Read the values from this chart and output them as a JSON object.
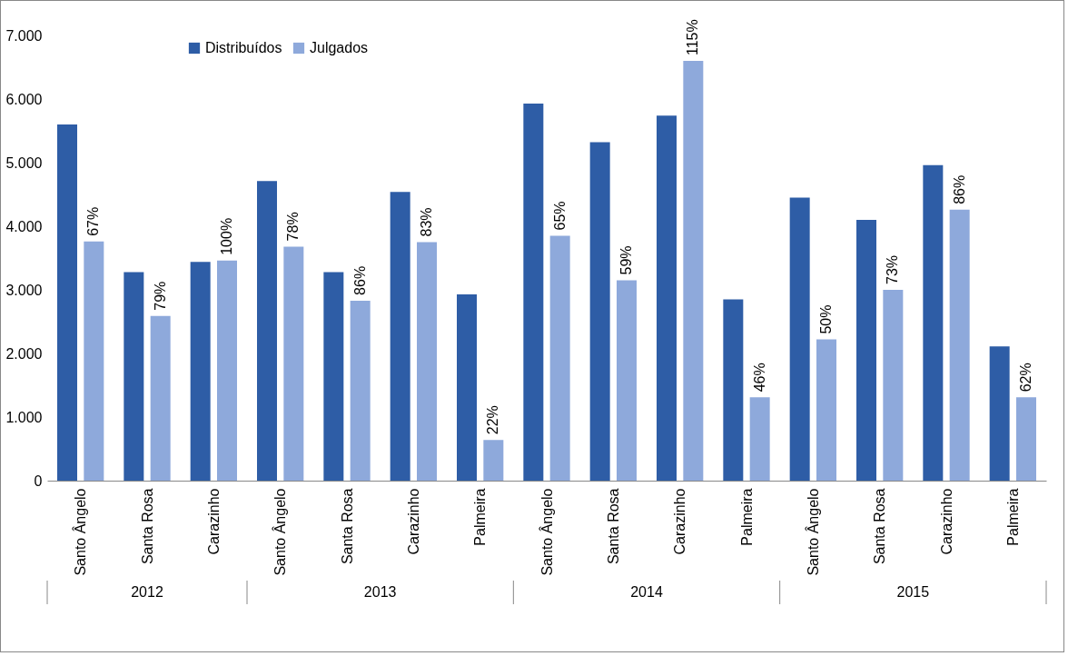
{
  "chart_data": {
    "type": "bar",
    "categories": [
      "Santo Ângelo",
      "Santa Rosa",
      "Carazinho",
      "Santo Ângelo",
      "Santa Rosa",
      "Carazinho",
      "Palmeira",
      "Santo Ângelo",
      "Santa Rosa",
      "Carazinho",
      "Palmeira",
      "Santo Ângelo",
      "Santa Rosa",
      "Carazinho",
      "Palmeira"
    ],
    "series": [
      {
        "name": "Distribuídos",
        "color": "#2e5da6",
        "values": [
          5600,
          3280,
          3440,
          4710,
          3280,
          4540,
          2930,
          5930,
          5320,
          5740,
          2850,
          4450,
          4100,
          4960,
          2110
        ]
      },
      {
        "name": "Julgados",
        "color": "#8ea9db",
        "values": [
          3760,
          2590,
          3460,
          3680,
          2830,
          3750,
          640,
          3850,
          3150,
          6600,
          1310,
          2220,
          3000,
          4260,
          1310
        ]
      }
    ],
    "ylim": [
      0,
      7000
    ],
    "yticks": [
      0,
      {
        "value": 1000,
        "label": "1.000"
      },
      {
        "value": 2000,
        "label": "2.000"
      },
      {
        "value": 3000,
        "label": "3.000"
      },
      {
        "value": 4000,
        "label": "4.000"
      },
      {
        "value": 5000,
        "label": "5.000"
      },
      {
        "value": 6000,
        "label": "6.000"
      },
      {
        "value": 7000,
        "label": "7.000"
      }
    ],
    "annotations": [
      "67%",
      "79%",
      "100%",
      "78%",
      "86%",
      "83%",
      "22%",
      "65%",
      "59%",
      "115%",
      "46%",
      "50%",
      "73%",
      "86%",
      "62%",
      "2012",
      "2013",
      "2014",
      "2015"
    ],
    "legend": "top left",
    "grid": false
  }
}
